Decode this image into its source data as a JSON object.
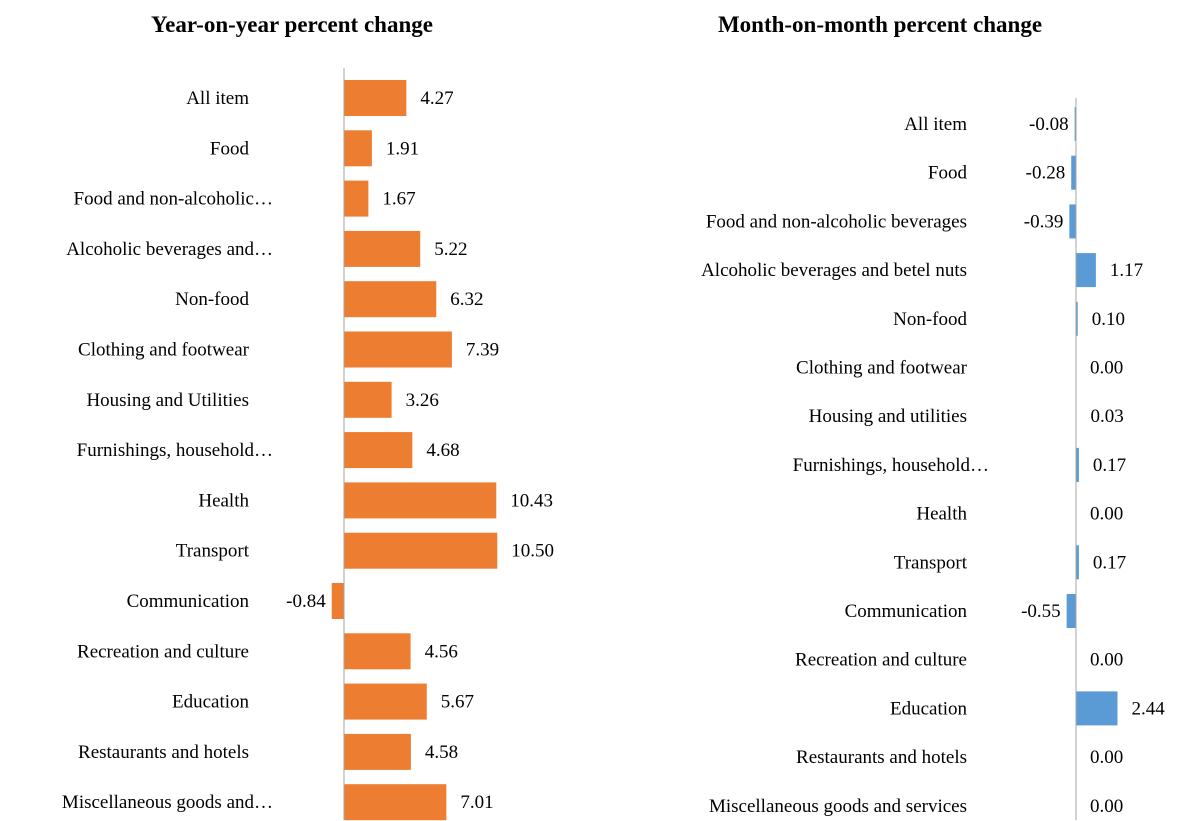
{
  "colors": {
    "yoy_bar": "#ED7D31",
    "mom_bar": "#5B9BD5",
    "axis": "#A6A6A6"
  },
  "chart_data": [
    {
      "type": "bar",
      "orientation": "horizontal",
      "title": "Year-on-year percent change",
      "categories": [
        "All item",
        "Food",
        "Food and non-alcoholic…",
        "Alcoholic beverages and…",
        "Non-food",
        "Clothing and footwear",
        "Housing and Utilities",
        "Furnishings, household…",
        "Health",
        "Transport",
        "Communication",
        "Recreation and culture",
        "Education",
        "Restaurants and hotels",
        "Miscellaneous goods and…"
      ],
      "values": [
        4.27,
        1.91,
        1.67,
        5.22,
        6.32,
        7.39,
        3.26,
        4.68,
        10.43,
        10.5,
        -0.84,
        4.56,
        5.67,
        4.58,
        7.01
      ],
      "value_labels": [
        "4.27",
        "1.91",
        "1.67",
        "5.22",
        "6.32",
        "7.39",
        "3.26",
        "4.68",
        "10.43",
        "10.50",
        "-0.84",
        "4.56",
        "5.67",
        "4.58",
        "7.01"
      ],
      "xlim": [
        -1,
        11
      ],
      "grid": false,
      "color": "#ED7D31"
    },
    {
      "type": "bar",
      "orientation": "horizontal",
      "title": "Month-on-month percent change",
      "categories": [
        "All item",
        "Food",
        "Food and non-alcoholic beverages",
        "Alcoholic beverages and betel nuts",
        "Non-food",
        "Clothing and footwear",
        "Housing and utilities",
        "Furnishings, household…",
        "Health",
        "Transport",
        "Communication",
        "Recreation and culture",
        "Education",
        "Restaurants and hotels",
        "Miscellaneous goods and services"
      ],
      "values": [
        -0.08,
        -0.28,
        -0.39,
        1.17,
        0.1,
        0.0,
        0.03,
        0.17,
        0.0,
        0.17,
        -0.55,
        0.0,
        2.44,
        0.0,
        0.0
      ],
      "value_labels": [
        "-0.08",
        "-0.28",
        "-0.39",
        "1.17",
        "0.10",
        "0.00",
        "0.03",
        "0.17",
        "0.00",
        "0.17",
        "-0.55",
        "0.00",
        "2.44",
        "0.00",
        "0.00"
      ],
      "xlim": [
        -1,
        3
      ],
      "grid": false,
      "color": "#5B9BD5"
    }
  ]
}
